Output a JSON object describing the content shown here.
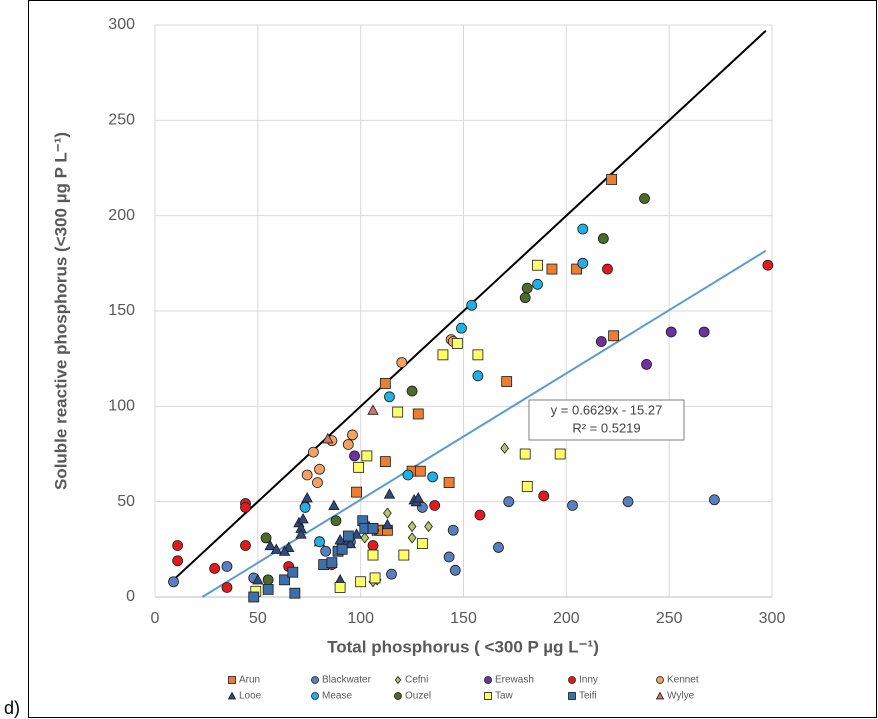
{
  "panel_label": "d)",
  "chart_data": {
    "type": "scatter",
    "x_label": "Total phosphorus ( <300 P µg L⁻¹)",
    "y_label": "Soluble reactive phosphorus (<300 µg P L⁻¹)",
    "xlim": [
      0,
      300
    ],
    "ylim": [
      0,
      300
    ],
    "xticks": [
      0,
      50,
      100,
      150,
      200,
      250,
      300
    ],
    "yticks": [
      0,
      50,
      100,
      150,
      200,
      250,
      300
    ],
    "grid": true,
    "legend": "bottom",
    "annotation": [
      "y = 0.6629x - 15.27",
      "R² = 0.5219"
    ],
    "lines": [
      {
        "color": "#000000",
        "x": [
          10,
          297
        ],
        "values": [
          10,
          297
        ]
      },
      {
        "color": "#5b9bd5",
        "x": [
          23,
          297
        ],
        "values": [
          0,
          181.6
        ]
      }
    ],
    "series": [
      {
        "name": "Arun",
        "color": "#ed7d31",
        "marker": "square",
        "x": [
          222,
          193,
          205,
          223,
          171,
          112,
          128,
          112,
          98,
          143,
          125,
          129,
          108,
          110,
          113
        ],
        "values": [
          219,
          172,
          172,
          137,
          113,
          112,
          96,
          71,
          55,
          60,
          66,
          66,
          35,
          35,
          35
        ]
      },
      {
        "name": "Blackwater",
        "color": "#5a7fc1",
        "marker": "circle",
        "x": [
          9,
          35,
          48,
          83,
          95,
          143,
          145,
          146,
          167,
          172,
          203,
          230,
          272,
          115,
          130
        ],
        "values": [
          8,
          16,
          10,
          24,
          29,
          21,
          35,
          14,
          26,
          50,
          48,
          50,
          51,
          12,
          47
        ]
      },
      {
        "name": "Cefni",
        "color": "#b4c96a",
        "marker": "diamond",
        "x": [
          102,
          106,
          108,
          113,
          125,
          125,
          133,
          170,
          107
        ],
        "values": [
          31,
          8,
          9,
          44,
          37,
          31,
          37,
          78,
          35
        ]
      },
      {
        "name": "Erewash",
        "color": "#7030a0",
        "marker": "circle",
        "x": [
          97,
          217,
          239,
          251,
          267
        ],
        "values": [
          74,
          134,
          122,
          139,
          139
        ]
      },
      {
        "name": "Inny",
        "color": "#e31a1c",
        "marker": "circle",
        "x": [
          11,
          11,
          29,
          35,
          44,
          44,
          44,
          65,
          86,
          106,
          136,
          158,
          189,
          220,
          298
        ],
        "values": [
          27,
          19,
          15,
          5,
          49,
          47,
          27,
          16,
          17,
          27,
          48,
          43,
          53,
          172,
          174
        ]
      },
      {
        "name": "Kennet",
        "color": "#f4a261",
        "marker": "circle",
        "x": [
          74,
          77,
          80,
          79,
          94,
          96,
          120,
          144,
          145,
          86
        ],
        "values": [
          64,
          76,
          67,
          60,
          80,
          85,
          123,
          135,
          134,
          82
        ]
      },
      {
        "name": "Looe",
        "color": "#2e4a7f",
        "marker": "triangle",
        "x": [
          50,
          56,
          59,
          65,
          70,
          71,
          71,
          72,
          73,
          74,
          80,
          87,
          90,
          93,
          95,
          98,
          104,
          113,
          114,
          126,
          127,
          128,
          90,
          63
        ],
        "values": [
          9,
          27,
          25,
          26,
          39,
          36,
          33,
          41,
          50,
          52,
          29,
          48,
          30,
          28,
          28,
          33,
          37,
          38,
          54,
          51,
          50,
          52,
          9,
          24
        ]
      },
      {
        "name": "Mease",
        "color": "#1fb0e6",
        "marker": "circle",
        "x": [
          73,
          80,
          114,
          123,
          135,
          149,
          154,
          157,
          186,
          208,
          208
        ],
        "values": [
          47,
          29,
          105,
          64,
          63,
          141,
          153,
          116,
          164,
          175,
          193
        ]
      },
      {
        "name": "Ouzel",
        "color": "#4e6b2c",
        "marker": "circle",
        "x": [
          54,
          55,
          88,
          125,
          180,
          181,
          218,
          238,
          103
        ],
        "values": [
          31,
          9,
          40,
          108,
          157,
          162,
          188,
          209,
          36
        ]
      },
      {
        "name": "Taw",
        "color": "#ffff66",
        "marker": "square",
        "x": [
          49,
          90,
          100,
          106,
          107,
          103,
          99,
          118,
          121,
          140,
          147,
          157,
          130,
          180,
          181,
          197,
          186
        ],
        "values": [
          3,
          5,
          8,
          22,
          10,
          74,
          68,
          97,
          22,
          127,
          133,
          127,
          28,
          75,
          58,
          75,
          174
        ]
      },
      {
        "name": "Teifi",
        "color": "#3d6fa8",
        "marker": "square",
        "x": [
          48,
          55,
          63,
          67,
          68,
          82,
          86,
          89,
          91,
          94,
          101,
          102,
          106
        ],
        "values": [
          0,
          4,
          9,
          13,
          2,
          17,
          18,
          24,
          25,
          32,
          40,
          36,
          36
        ]
      },
      {
        "name": "Wylye",
        "color": "#d9746a",
        "marker": "triangle",
        "x": [
          84,
          106
        ],
        "values": [
          83,
          98
        ]
      }
    ]
  }
}
